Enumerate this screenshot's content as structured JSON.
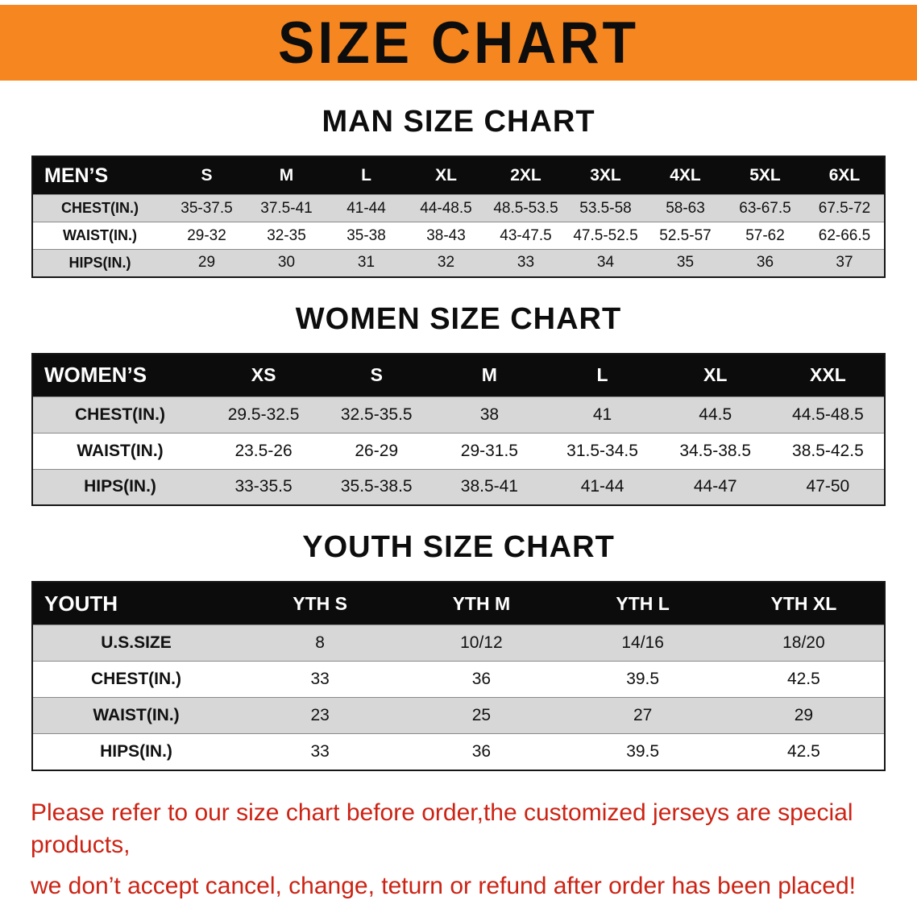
{
  "banner": {
    "title": "SIZE CHART"
  },
  "colors": {
    "banner_orange": "#f6861f",
    "header_black": "#0c0c0c",
    "row_gray": "#d7d7d7",
    "note_red": "#cc2314"
  },
  "sections": [
    {
      "heading": "MAN SIZE CHART",
      "table": {
        "header": [
          "MEN’S",
          "S",
          "M",
          "L",
          "XL",
          "2XL",
          "3XL",
          "4XL",
          "5XL",
          "6XL"
        ],
        "rows": [
          {
            "label": "CHEST(IN.)",
            "values": [
              "35-37.5",
              "37.5-41",
              "41-44",
              "44-48.5",
              "48.5-53.5",
              "53.5-58",
              "58-63",
              "63-67.5",
              "67.5-72"
            ]
          },
          {
            "label": "WAIST(IN.)",
            "values": [
              "29-32",
              "32-35",
              "35-38",
              "38-43",
              "43-47.5",
              "47.5-52.5",
              "52.5-57",
              "57-62",
              "62-66.5"
            ]
          },
          {
            "label": "HIPS(IN.)",
            "values": [
              "29",
              "30",
              "31",
              "32",
              "33",
              "34",
              "35",
              "36",
              "37"
            ]
          }
        ]
      }
    },
    {
      "heading": "WOMEN SIZE CHART",
      "table": {
        "header": [
          "WOMEN’S",
          "XS",
          "S",
          "M",
          "L",
          "XL",
          "XXL"
        ],
        "rows": [
          {
            "label": "CHEST(IN.)",
            "values": [
              "29.5-32.5",
              "32.5-35.5",
              "38",
              "41",
              "44.5",
              "44.5-48.5"
            ]
          },
          {
            "label": "WAIST(IN.)",
            "values": [
              "23.5-26",
              "26-29",
              "29-31.5",
              "31.5-34.5",
              "34.5-38.5",
              "38.5-42.5"
            ]
          },
          {
            "label": "HIPS(IN.)",
            "values": [
              "33-35.5",
              "35.5-38.5",
              "38.5-41",
              "41-44",
              "44-47",
              "47-50"
            ]
          }
        ]
      }
    },
    {
      "heading": "YOUTH SIZE CHART",
      "table": {
        "header": [
          "YOUTH",
          "YTH S",
          "YTH M",
          "YTH L",
          "YTH XL"
        ],
        "rows": [
          {
            "label": "U.S.SIZE",
            "values": [
              "8",
              "10/12",
              "14/16",
              "18/20"
            ]
          },
          {
            "label": "CHEST(IN.)",
            "values": [
              "33",
              "36",
              "39.5",
              "42.5"
            ]
          },
          {
            "label": "WAIST(IN.)",
            "values": [
              "23",
              "25",
              "27",
              "29"
            ]
          },
          {
            "label": "HIPS(IN.)",
            "values": [
              "33",
              "36",
              "39.5",
              "42.5"
            ]
          }
        ]
      }
    }
  ],
  "footer": {
    "line1": "Please refer to our size chart before order,the customized jerseys are special products,",
    "line2": "we don’t accept cancel, change, teturn or refund after order has been placed!"
  }
}
